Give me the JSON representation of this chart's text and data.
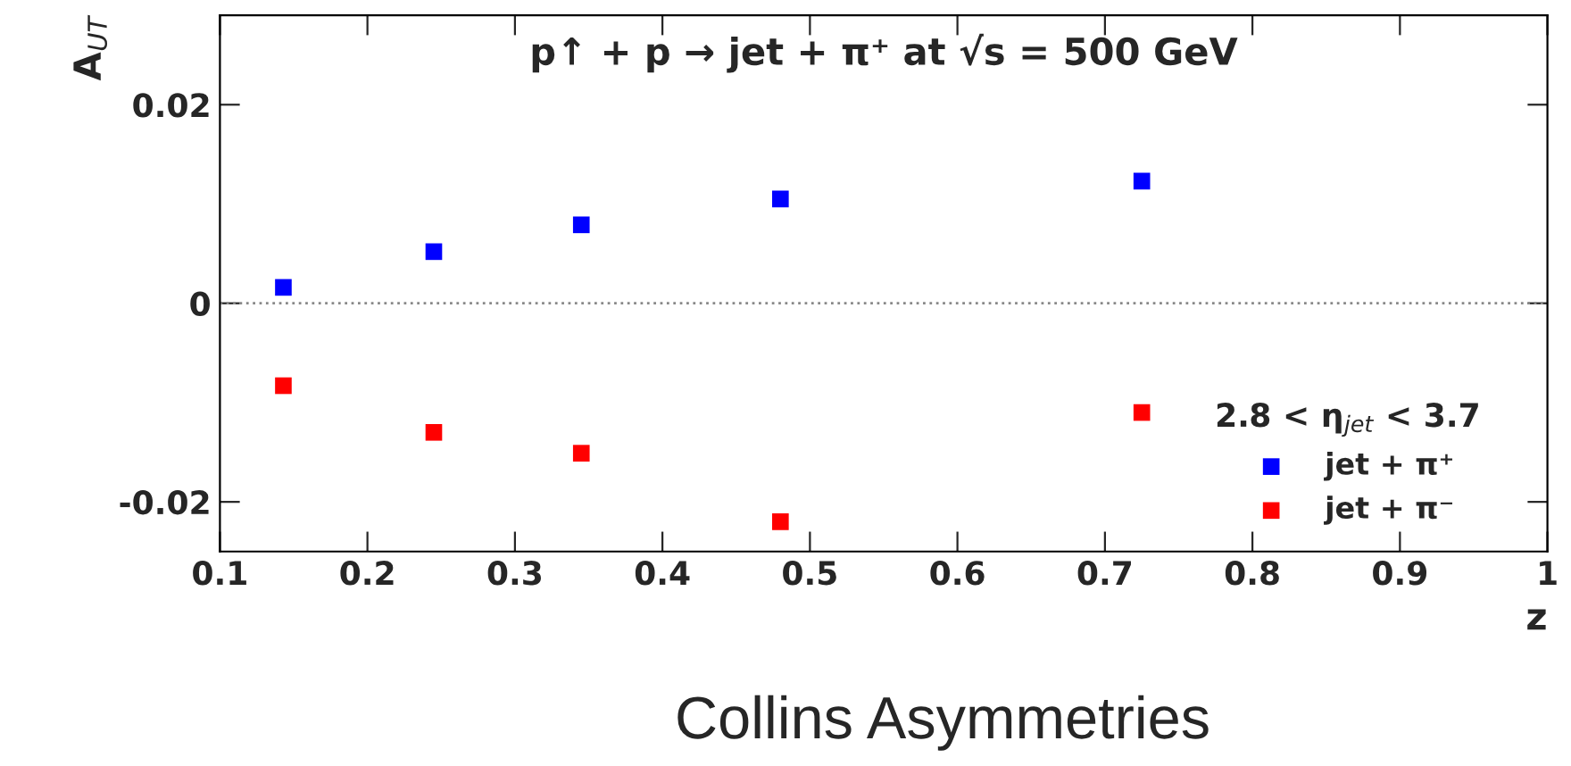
{
  "chart_data": {
    "type": "scatter",
    "title": "p↑ + p → jet + π⁺ at √s = 500 GeV",
    "xlabel": "z",
    "ylabel": "A$_{UT}$",
    "legend_title": "2.8 < η$_{jet}$ < 3.7",
    "x": [
      0.143,
      0.245,
      0.345,
      0.48,
      0.725
    ],
    "series": [
      {
        "name": "jet + π⁺",
        "color": "#0000ff",
        "values": [
          0.0016,
          0.0052,
          0.0079,
          0.0105,
          0.0123
        ]
      },
      {
        "name": "jet + π⁻",
        "color": "#ff0000",
        "values": [
          -0.0083,
          -0.013,
          -0.0151,
          -0.022,
          -0.011
        ]
      }
    ],
    "xlim": [
      0.1,
      1
    ],
    "xticks": [
      0.1,
      0.2,
      0.3,
      0.4,
      0.5,
      0.6,
      0.7,
      0.8,
      0.9,
      1
    ],
    "ylim": [
      -0.025,
      0.029
    ],
    "yticks": [
      {
        "value": -0.02,
        "label": "-0.02"
      },
      0,
      0.02
    ],
    "ref_lines": [
      {
        "axis": "y",
        "value": 0,
        "color": "#888888",
        "line_style": "dotted"
      }
    ],
    "annotations": [
      "Collins Asymmetries"
    ],
    "marker": "square",
    "legend": "bottom right",
    "grid": false
  }
}
